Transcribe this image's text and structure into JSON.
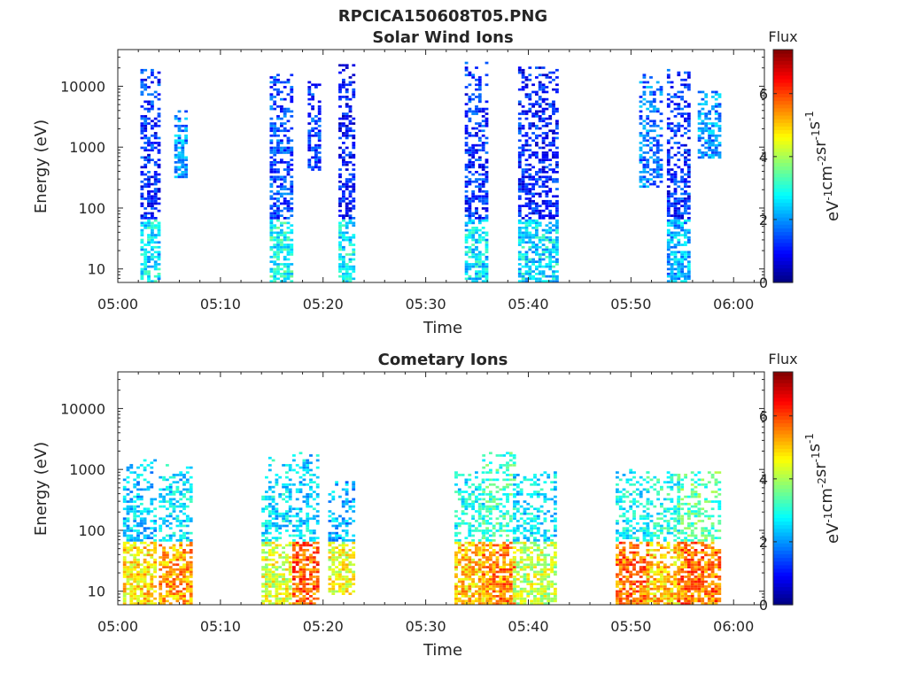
{
  "figure": {
    "title": "RPCICA150608T05.PNG"
  },
  "chart_data": [
    {
      "type": "heatmap",
      "title": "Solar Wind Ions",
      "xlabel": "Time",
      "ylabel": "Energy (eV)",
      "x_ticks": [
        "05:00",
        "05:10",
        "05:20",
        "05:30",
        "05:40",
        "05:50",
        "06:00"
      ],
      "x_tick_minutes": [
        0,
        10,
        20,
        30,
        40,
        50,
        60
      ],
      "xlim_minutes": [
        0,
        63
      ],
      "y_ticks": [
        "10",
        "100",
        "1000",
        "10000"
      ],
      "y_tick_values": [
        10,
        100,
        1000,
        10000
      ],
      "ylim": [
        6,
        40000
      ],
      "y_scale": "log",
      "colorbar": {
        "title": "Flux",
        "label": "eV-1cm-2sr-1s-1",
        "ticks": [
          "0",
          "2",
          "4",
          "6"
        ],
        "tick_values": [
          0,
          2,
          4,
          6
        ],
        "range": [
          0,
          7.4
        ],
        "colormap": "jet"
      },
      "bursts": [
        {
          "start_min": 2.2,
          "end_min": 4.0,
          "e_min": 6,
          "e_max": 18000,
          "level": 1.2,
          "low_energy_level": 2.6
        },
        {
          "start_min": 5.5,
          "end_min": 6.8,
          "e_min": 300,
          "e_max": 4000,
          "level": 2.0,
          "low_energy_level": 2.0
        },
        {
          "start_min": 14.8,
          "end_min": 16.8,
          "e_min": 6,
          "e_max": 15000,
          "level": 1.4,
          "low_energy_level": 2.9
        },
        {
          "start_min": 18.5,
          "end_min": 19.5,
          "e_min": 400,
          "e_max": 12000,
          "level": 1.3,
          "low_energy_level": 1.3
        },
        {
          "start_min": 21.5,
          "end_min": 23.0,
          "e_min": 6,
          "e_max": 22000,
          "level": 1.0,
          "low_energy_level": 2.7
        },
        {
          "start_min": 33.8,
          "end_min": 36.0,
          "e_min": 6,
          "e_max": 25000,
          "level": 1.2,
          "low_energy_level": 2.6
        },
        {
          "start_min": 39.0,
          "end_min": 42.7,
          "e_min": 6,
          "e_max": 20000,
          "level": 1.1,
          "low_energy_level": 2.6
        },
        {
          "start_min": 50.8,
          "end_min": 52.8,
          "e_min": 200,
          "e_max": 15000,
          "level": 1.8,
          "low_energy_level": 1.8
        },
        {
          "start_min": 53.5,
          "end_min": 55.6,
          "e_min": 6,
          "e_max": 18000,
          "level": 1.2,
          "low_energy_level": 2.2
        },
        {
          "start_min": 56.5,
          "end_min": 58.5,
          "e_min": 600,
          "e_max": 8000,
          "level": 2.0,
          "low_energy_level": 2.0
        }
      ]
    },
    {
      "type": "heatmap",
      "title": "Cometary Ions",
      "xlabel": "Time",
      "ylabel": "Energy (eV)",
      "x_ticks": [
        "05:00",
        "05:10",
        "05:20",
        "05:30",
        "05:40",
        "05:50",
        "06:00"
      ],
      "x_tick_minutes": [
        0,
        10,
        20,
        30,
        40,
        50,
        60
      ],
      "xlim_minutes": [
        0,
        63
      ],
      "y_ticks": [
        "10",
        "100",
        "1000",
        "10000"
      ],
      "y_tick_values": [
        10,
        100,
        1000,
        10000
      ],
      "ylim": [
        6,
        40000
      ],
      "y_scale": "log",
      "colorbar": {
        "title": "Flux",
        "label": "eV-1cm-2sr-1s-1",
        "ticks": [
          "0",
          "2",
          "4",
          "6"
        ],
        "tick_values": [
          0,
          2,
          4,
          6
        ],
        "range": [
          0,
          7.4
        ],
        "colormap": "jet"
      },
      "bursts": [
        {
          "start_min": 0.5,
          "end_min": 3.5,
          "e_min": 6,
          "e_max": 1500,
          "level": 2.4,
          "low_energy_level": 4.8
        },
        {
          "start_min": 4.0,
          "end_min": 7.0,
          "e_min": 6,
          "e_max": 1200,
          "level": 2.6,
          "low_energy_level": 5.3
        },
        {
          "start_min": 14.0,
          "end_min": 16.8,
          "e_min": 6,
          "e_max": 1500,
          "level": 2.6,
          "low_energy_level": 4.4
        },
        {
          "start_min": 17.0,
          "end_min": 19.5,
          "e_min": 6,
          "e_max": 1800,
          "level": 2.5,
          "low_energy_level": 5.8
        },
        {
          "start_min": 20.5,
          "end_min": 23.0,
          "e_min": 8,
          "e_max": 600,
          "level": 2.2,
          "low_energy_level": 4.5
        },
        {
          "start_min": 32.8,
          "end_min": 35.5,
          "e_min": 6,
          "e_max": 900,
          "level": 2.8,
          "low_energy_level": 5.0
        },
        {
          "start_min": 35.5,
          "end_min": 38.5,
          "e_min": 6,
          "e_max": 1800,
          "level": 3.2,
          "low_energy_level": 5.5
        },
        {
          "start_min": 38.5,
          "end_min": 42.5,
          "e_min": 6,
          "e_max": 900,
          "level": 2.6,
          "low_energy_level": 4.2
        },
        {
          "start_min": 48.5,
          "end_min": 51.5,
          "e_min": 6,
          "e_max": 1000,
          "level": 2.8,
          "low_energy_level": 5.7
        },
        {
          "start_min": 51.5,
          "end_min": 54.5,
          "e_min": 6,
          "e_max": 900,
          "level": 3.0,
          "low_energy_level": 5.0
        },
        {
          "start_min": 54.5,
          "end_min": 58.5,
          "e_min": 6,
          "e_max": 900,
          "level": 3.4,
          "low_energy_level": 5.6
        }
      ]
    }
  ]
}
